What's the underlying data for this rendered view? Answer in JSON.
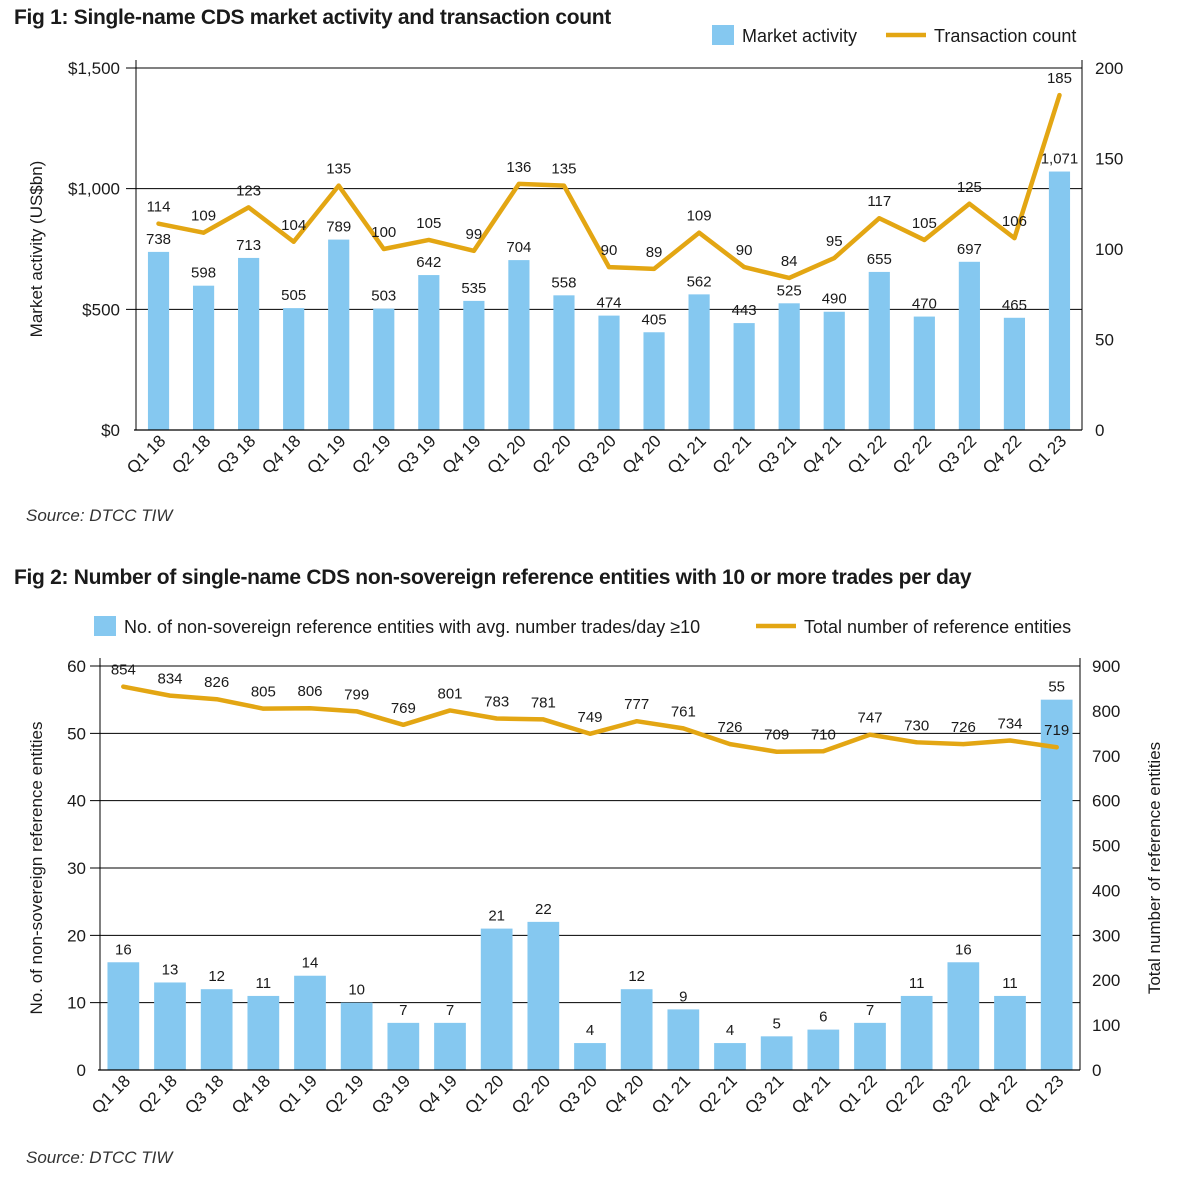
{
  "colors": {
    "bar": "#85C8F0",
    "line": "#E3A613",
    "grid": "#000000"
  },
  "chart_data": [
    {
      "type": "bar",
      "title": "Fig 1: Single-name CDS market activity and transaction count",
      "source": "Source: DTCC TIW",
      "categories": [
        "Q1 18",
        "Q2 18",
        "Q3 18",
        "Q4 18",
        "Q1 19",
        "Q2 19",
        "Q3 19",
        "Q4 19",
        "Q1 20",
        "Q2 20",
        "Q3 20",
        "Q4 20",
        "Q1 21",
        "Q2 21",
        "Q3 21",
        "Q4 21",
        "Q1 22",
        "Q2 22",
        "Q3 22",
        "Q4 22",
        "Q1 23"
      ],
      "ylabel": "Market activity (US$bn)",
      "ylabel_right": "",
      "ylim": [
        0,
        1500
      ],
      "y_ticks": [
        "$0",
        "$500",
        "$1,000",
        "$1,500"
      ],
      "y_tick_values": [
        0,
        500,
        1000,
        1500
      ],
      "ylim_right": [
        0,
        200
      ],
      "y2_ticks": [
        "0",
        "50",
        "100",
        "150",
        "200"
      ],
      "y2_tick_values": [
        0,
        50,
        100,
        150,
        200
      ],
      "legend_position": "top-right",
      "grid": true,
      "series": [
        {
          "name": "Market activity",
          "kind": "bar",
          "axis": "left",
          "values": [
            738,
            598,
            713,
            505,
            789,
            503,
            642,
            535,
            704,
            558,
            474,
            405,
            562,
            443,
            525,
            490,
            655,
            470,
            697,
            465,
            1071
          ],
          "labels": [
            "738",
            "598",
            "713",
            "505",
            "789",
            "503",
            "642",
            "535",
            "704",
            "558",
            "474",
            "405",
            "562",
            "443",
            "525",
            "490",
            "655",
            "470",
            "697",
            "465",
            "1,071"
          ]
        },
        {
          "name": "Transaction count",
          "kind": "line",
          "axis": "right",
          "values": [
            114,
            109,
            123,
            104,
            135,
            100,
            105,
            99,
            136,
            135,
            90,
            89,
            109,
            90,
            84,
            95,
            117,
            105,
            125,
            106,
            185
          ],
          "labels": [
            "114",
            "109",
            "123",
            "104",
            "135",
            "100",
            "105",
            "99",
            "136",
            "135",
            "90",
            "89",
            "109",
            "90",
            "84",
            "95",
            "117",
            "105",
            "125",
            "106",
            "185"
          ]
        }
      ]
    },
    {
      "type": "bar",
      "title": "Fig 2: Number of single-name CDS non-sovereign reference entities with 10 or more trades per day",
      "source": "Source: DTCC TIW",
      "categories": [
        "Q1 18",
        "Q2 18",
        "Q3 18",
        "Q4 18",
        "Q1 19",
        "Q2 19",
        "Q3 19",
        "Q4 19",
        "Q1 20",
        "Q2 20",
        "Q3 20",
        "Q4 20",
        "Q1 21",
        "Q2 21",
        "Q3 21",
        "Q4 21",
        "Q1 22",
        "Q2 22",
        "Q3 22",
        "Q4 22",
        "Q1 23"
      ],
      "ylabel": "No. of non-sovereign reference entities",
      "ylabel_right": "Total number of reference entities",
      "ylim": [
        0,
        60
      ],
      "y_ticks": [
        "0",
        "10",
        "20",
        "30",
        "40",
        "50",
        "60"
      ],
      "y_tick_values": [
        0,
        10,
        20,
        30,
        40,
        50,
        60
      ],
      "ylim_right": [
        0,
        900
      ],
      "y2_ticks": [
        "0",
        "100",
        "200",
        "300",
        "400",
        "500",
        "600",
        "700",
        "800",
        "900"
      ],
      "y2_tick_values": [
        0,
        100,
        200,
        300,
        400,
        500,
        600,
        700,
        800,
        900
      ],
      "legend_position": "top",
      "grid": true,
      "series": [
        {
          "name": "No. of non-sovereign reference entities with avg. number trades/day ≥10",
          "kind": "bar",
          "axis": "left",
          "values": [
            16,
            13,
            12,
            11,
            14,
            10,
            7,
            7,
            21,
            22,
            4,
            12,
            9,
            4,
            5,
            6,
            7,
            11,
            16,
            11,
            55
          ],
          "labels": [
            "16",
            "13",
            "12",
            "11",
            "14",
            "10",
            "7",
            "7",
            "21",
            "22",
            "4",
            "12",
            "9",
            "4",
            "5",
            "6",
            "7",
            "11",
            "16",
            "11",
            "55"
          ]
        },
        {
          "name": "Total number of reference entities",
          "kind": "line",
          "axis": "right",
          "values": [
            854,
            834,
            826,
            805,
            806,
            799,
            769,
            801,
            783,
            781,
            749,
            777,
            761,
            726,
            709,
            710,
            747,
            730,
            726,
            734,
            719
          ],
          "labels": [
            "854",
            "834",
            "826",
            "805",
            "806",
            "799",
            "769",
            "801",
            "783",
            "781",
            "749",
            "777",
            "761",
            "726",
            "709",
            "710",
            "747",
            "730",
            "726",
            "734",
            "719"
          ]
        }
      ]
    }
  ]
}
